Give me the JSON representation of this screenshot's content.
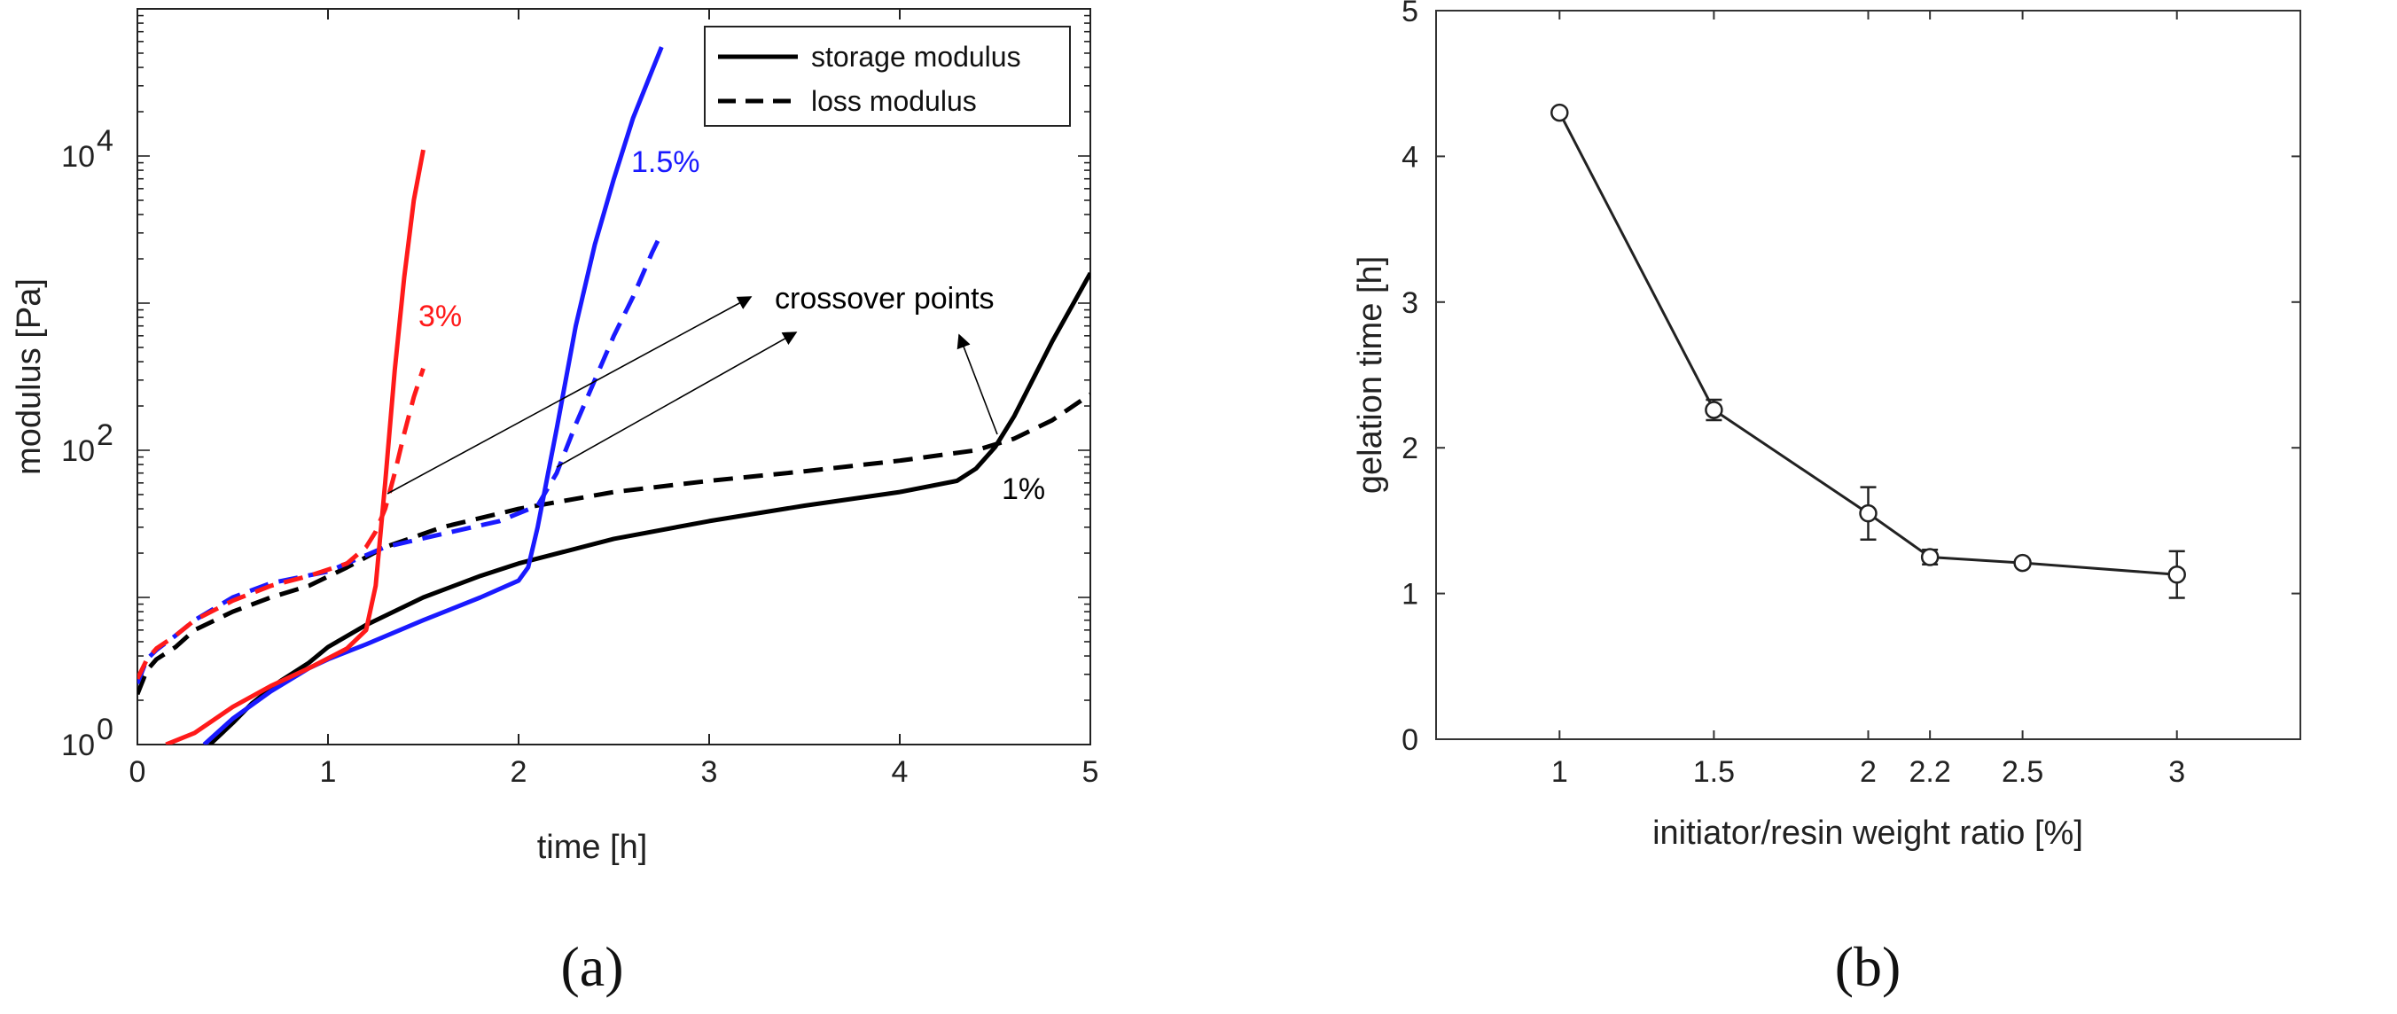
{
  "chart_data": [
    {
      "panel": "(a)",
      "type": "line",
      "xlabel": "time [h]",
      "ylabel": "modulus [Pa]",
      "xlim": [
        0,
        5
      ],
      "ylim": [
        1,
        100000
      ],
      "yscale": "log",
      "xticks": [
        "0",
        "1",
        "2",
        "3",
        "4",
        "5"
      ],
      "yticks": [
        {
          "base": "10",
          "exp": "0"
        },
        {
          "base": "10",
          "exp": "2"
        },
        {
          "base": "10",
          "exp": "4"
        }
      ],
      "legend": {
        "position": "top-right",
        "entries": [
          {
            "label": "storage modulus",
            "style": "solid"
          },
          {
            "label": "loss modulus",
            "style": "dashed"
          }
        ]
      },
      "annotations": {
        "crossover": "crossover points",
        "label_1": "1%",
        "label_15": "1.5%",
        "label_3": "3%"
      },
      "colors": {
        "c1": "#000000",
        "c15": "#1a1aff",
        "c3": "#ff1a1a"
      },
      "series": [
        {
          "name": "1% storage modulus",
          "color": "#000000",
          "style": "solid",
          "x": [
            0.38,
            0.5,
            0.6,
            0.75,
            0.9,
            1.0,
            1.2,
            1.5,
            1.8,
            2.0,
            2.5,
            3.0,
            3.5,
            4.0,
            4.3,
            4.4,
            4.5,
            4.6,
            4.8,
            5.0
          ],
          "y": [
            1,
            1.4,
            1.9,
            2.7,
            3.6,
            4.6,
            6.5,
            10,
            14,
            17,
            25,
            33,
            42,
            52,
            62,
            75,
            105,
            170,
            550,
            1600
          ]
        },
        {
          "name": "1% loss modulus",
          "color": "#000000",
          "style": "dashed",
          "x": [
            0.0,
            0.05,
            0.1,
            0.2,
            0.3,
            0.5,
            0.7,
            0.9,
            1.1,
            1.3,
            1.6,
            2.0,
            2.5,
            3.0,
            3.5,
            4.0,
            4.4,
            4.6,
            4.8,
            5.0
          ],
          "y": [
            2.2,
            3.2,
            3.8,
            4.6,
            6.0,
            8.0,
            10,
            12,
            16,
            22,
            30,
            40,
            52,
            62,
            72,
            85,
            100,
            120,
            160,
            240
          ]
        },
        {
          "name": "1.5% storage modulus",
          "color": "#1a1aff",
          "style": "solid",
          "x": [
            0.35,
            0.5,
            0.7,
            0.9,
            1.0,
            1.2,
            1.5,
            1.8,
            2.0,
            2.05,
            2.1,
            2.2,
            2.3,
            2.4,
            2.5,
            2.6,
            2.7,
            2.75
          ],
          "y": [
            1,
            1.5,
            2.3,
            3.3,
            3.8,
            4.8,
            7,
            10,
            13,
            16,
            30,
            140,
            700,
            2500,
            7000,
            18000,
            38000,
            55000
          ]
        },
        {
          "name": "1.5% loss modulus",
          "color": "#1a1aff",
          "style": "dashed",
          "x": [
            0.0,
            0.05,
            0.1,
            0.2,
            0.3,
            0.5,
            0.7,
            1.0,
            1.3,
            1.6,
            1.9,
            2.1,
            2.2,
            2.3,
            2.4,
            2.5,
            2.6,
            2.7,
            2.75
          ],
          "y": [
            2.6,
            3.8,
            4.4,
            5.5,
            7.0,
            10,
            12.5,
            15,
            22,
            27,
            33,
            42,
            70,
            150,
            300,
            600,
            1100,
            2200,
            3000
          ]
        },
        {
          "name": "3% storage modulus",
          "color": "#ff1a1a",
          "style": "solid",
          "x": [
            0.15,
            0.3,
            0.5,
            0.7,
            0.9,
            1.1,
            1.2,
            1.25,
            1.3,
            1.35,
            1.4,
            1.45,
            1.5
          ],
          "y": [
            1,
            1.2,
            1.8,
            2.5,
            3.3,
            4.5,
            6,
            12,
            60,
            350,
            1500,
            5000,
            11000
          ]
        },
        {
          "name": "3% loss modulus",
          "color": "#ff1a1a",
          "style": "dashed",
          "x": [
            0.0,
            0.05,
            0.1,
            0.2,
            0.3,
            0.5,
            0.7,
            0.9,
            1.1,
            1.2,
            1.25,
            1.3,
            1.35,
            1.4,
            1.45,
            1.5
          ],
          "y": [
            2.8,
            3.8,
            4.5,
            5.5,
            7,
            9.5,
            12,
            14,
            17,
            22,
            28,
            40,
            70,
            130,
            230,
            360
          ]
        }
      ]
    },
    {
      "panel": "(b)",
      "type": "line",
      "xlabel": "initiator/resin weight ratio [%]",
      "ylabel": "gelation time [h]",
      "xlim": [
        0.6,
        3.4
      ],
      "ylim": [
        0,
        5
      ],
      "xticks": [
        "1",
        "1.5",
        "2",
        "2.2",
        "2.5",
        "3"
      ],
      "yticks": [
        "0",
        "1",
        "2",
        "3",
        "4",
        "5"
      ],
      "series": [
        {
          "name": "gelation time",
          "color": "#222222",
          "x": [
            1.0,
            1.5,
            2.0,
            2.2,
            2.5,
            3.0
          ],
          "y": [
            4.3,
            2.26,
            1.55,
            1.25,
            1.21,
            1.13
          ],
          "err": [
            0.0,
            0.07,
            0.18,
            0.05,
            0.0,
            0.16
          ]
        }
      ]
    }
  ]
}
